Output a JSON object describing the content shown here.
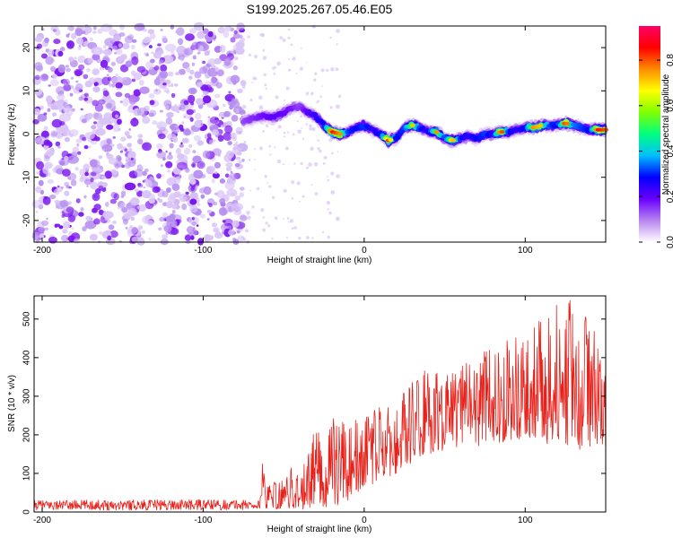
{
  "title": "S199.2025.267.05.46.E05",
  "chart_data": [
    {
      "type": "heatmap",
      "name": "spectrogram",
      "xlabel": "Height of straight line (km)",
      "ylabel": "Frequency (Hz)",
      "xlim": [
        -205,
        150
      ],
      "ylim": [
        -25,
        25
      ],
      "x_ticks": [
        -200,
        -100,
        0,
        100
      ],
      "x_tick_labels": [
        "-200",
        "-100",
        "0",
        "100"
      ],
      "y_ticks": [
        -20,
        -10,
        0,
        10,
        20
      ],
      "y_tick_labels": [
        "-20",
        "-10",
        "0",
        "10",
        "20"
      ],
      "noise_region_x": [
        -205,
        -75
      ],
      "ridge": {
        "x": [
          -75,
          -65,
          -55,
          -45,
          -40,
          -35,
          -30,
          -25,
          -20,
          -15,
          -10,
          -5,
          0,
          5,
          10,
          15,
          20,
          25,
          30,
          35,
          40,
          45,
          50,
          55,
          60,
          65,
          70,
          75,
          80,
          85,
          90,
          95,
          100,
          105,
          110,
          115,
          120,
          125,
          130,
          135,
          140,
          145,
          150
        ],
        "y": [
          3,
          4,
          4,
          6,
          6.5,
          5,
          4,
          2,
          0.5,
          0,
          0.5,
          1.5,
          2,
          1,
          0,
          -1.5,
          -1,
          1.5,
          2,
          1.5,
          0.5,
          0.5,
          -1,
          -1.5,
          -1,
          -0.5,
          -1,
          0,
          0,
          0.5,
          0.5,
          1,
          1.5,
          1.5,
          2,
          2,
          2,
          2.5,
          2,
          1.5,
          1,
          1,
          1
        ],
        "amplitude": [
          0.2,
          0.25,
          0.3,
          0.25,
          0.2,
          0.3,
          0.35,
          0.4,
          0.9,
          0.8,
          0.45,
          0.4,
          0.45,
          0.35,
          0.4,
          0.85,
          0.4,
          0.45,
          0.75,
          0.4,
          0.35,
          0.8,
          0.45,
          0.8,
          0.4,
          0.35,
          0.4,
          0.45,
          0.35,
          0.9,
          0.4,
          0.35,
          0.4,
          0.8,
          0.75,
          0.45,
          0.4,
          0.9,
          0.5,
          0.45,
          0.4,
          0.9,
          0.85
        ]
      },
      "colorbar": {
        "label": "Normalized spectral amplitude",
        "range": [
          0,
          0.95
        ],
        "ticks": [
          0.0,
          0.2,
          0.4,
          0.6,
          0.8
        ],
        "tick_labels": [
          "0.0",
          "0.2",
          "0.4",
          "0.6",
          "0.8"
        ],
        "colors": [
          "#ffffff",
          "#b784ef",
          "#6a00ff",
          "#0000ff",
          "#00bfff",
          "#00ff7f",
          "#7fff00",
          "#ffff00",
          "#ff8c00",
          "#ff0000",
          "#ff0066"
        ]
      }
    },
    {
      "type": "line",
      "name": "snr",
      "xlabel": "Height of straight line (km)",
      "ylabel": "SNR (10 * v/v)",
      "xlim": [
        -205,
        150
      ],
      "ylim": [
        0,
        560
      ],
      "x_ticks": [
        -200,
        -100,
        0,
        100
      ],
      "x_tick_labels": [
        "-200",
        "-100",
        "0",
        "100"
      ],
      "y_ticks": [
        0,
        100,
        200,
        300,
        400,
        500
      ],
      "y_tick_labels": [
        "0",
        "100",
        "200",
        "300",
        "400",
        "500"
      ],
      "color": "#e8211b",
      "envelope": {
        "x": [
          -205,
          -150,
          -100,
          -65,
          -64,
          -60,
          -50,
          -45,
          -40,
          -30,
          -20,
          -15,
          -10,
          -5,
          0,
          10,
          20,
          30,
          40,
          50,
          60,
          70,
          80,
          90,
          100,
          110,
          120,
          130,
          140,
          150
        ],
        "low": [
          5,
          5,
          5,
          5,
          20,
          5,
          10,
          10,
          5,
          15,
          10,
          20,
          30,
          40,
          60,
          80,
          100,
          130,
          150,
          160,
          170,
          170,
          180,
          180,
          190,
          180,
          170,
          160,
          160,
          170
        ],
        "high": [
          30,
          32,
          32,
          32,
          145,
          70,
          90,
          120,
          100,
          220,
          250,
          260,
          220,
          240,
          250,
          280,
          300,
          340,
          380,
          360,
          390,
          420,
          440,
          450,
          460,
          500,
          540,
          560,
          500,
          450
        ]
      }
    }
  ]
}
